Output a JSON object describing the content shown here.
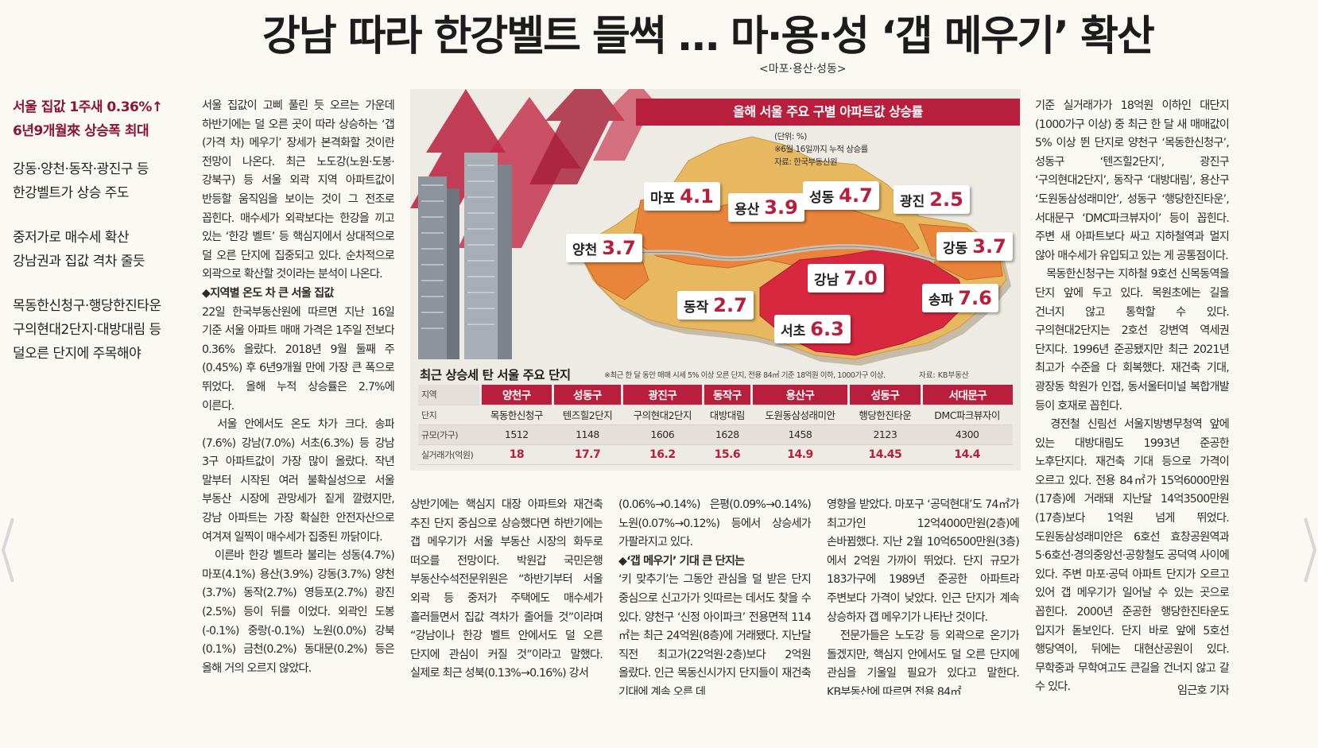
{
  "headline": "강남 따라 한강벨트 들썩 … 마·용·성 ‘갭 메우기’ 확산",
  "subhead": "<마포·용산·성동>",
  "side": {
    "lead1": "서울 집값 1주새 0.36%↑",
    "lead2": "6년9개월來 상승폭 최대",
    "p1a": "강동·양천·동작·광진구 등",
    "p1b": "한강벨트가 상승 주도",
    "p2a": "중저가로 매수세 확산",
    "p2b": "강남권과 집값 격차 줄듯",
    "p3a": "목동한신청구·행당한진타운",
    "p3b": "구의현대2단지·대방대림 등",
    "p3c": "덜오른 단지에 주목해야"
  },
  "col1": {
    "p1": "서울 집값이 고삐 풀린 듯 오르는 가운데 하반기에는 덜 오른 곳이 따라 상승하는 ‘갭(가격 차) 메우기’ 장세가 본격화할 것이란 전망이 나온다. 최근 노도강(노원·도봉·강북구) 등 서울 외곽 지역 아파트값이 반등할 움직임을 보이는 것이 그 전조로 꼽힌다. 매수세가 외곽보다는 한강을 끼고 있는 ‘한강 벨트’ 등 핵심지에서 상대적으로 덜 오른 단지에 집중되고 있다. 순차적으로 외곽으로 확산할 것이라는 분석이 나온다.",
    "sec1": "◆지역별 온도 차 큰 서울 집값",
    "p2": "22일 한국부동산원에 따르면 지난 16일 기준 서울 아파트 매매 가격은 1주일 전보다 0.36% 올랐다. 2018년 9월 둘째 주(0.45%) 후 6년9개월 만에 가장 큰 폭으로 뛰었다. 올해 누적 상승률은 2.7%에 이른다.",
    "p3": "　서울 안에서도 온도 차가 크다. 송파(7.6%) 강남(7.0%) 서초(6.3%) 등 강남 3구 아파트값이 가장 많이 올랐다. 작년 말부터 시작된 여러 불확실성으로 서울 부동산 시장에 관망세가 짙게 깔렸지만, 강남 아파트는 가장 확실한 안전자산으로 여겨져 일찍이 매수세가 집중된 까닭이다.",
    "p4": "　이른바 한강 벨트라 불리는 성동(4.7%) 마포(4.1%) 용산(3.9%) 강동(3.7%) 양천(3.7%) 동작(2.7%) 영등포(2.7%) 광진(2.5%) 등이 뒤를 이었다. 외곽인 도봉(-0.1%) 중랑(-0.1%) 노원(0.0%) 강북(0.1%) 금천(0.2%) 동대문(0.2%) 등은 올해 거의 오르지 않았다."
  },
  "col2": "상반기에는 핵심지 대장 아파트와 재건축 추진 단지 중심으로 상승했다면 하반기에는 갭 메우기가 서울 부동산 시장의 화두로 떠오를 전망이다. 박원갑 국민은행 부동산수석전문위원은 “하반기부터 서울 외곽 등 중저가 주택에도 매수세가 흘러들면서 집값 격차가 줄어들 것”이라며 “강남이나 한강 벨트 안에서도 덜 오른 단지에 관심이 커질 것”이라고 말했다. 실제로 최근 성북(0.13%→0.16%) 강서",
  "col3": {
    "p1": "(0.06%→0.14%) 은평(0.09%→0.14%) 노원(0.07%→0.12%) 등에서 상승세가 가팔라지고 있다.",
    "sec": "◆‘갭 메우기’ 기대 큰 단지는",
    "p2": "‘키 맞추기’는 그동안 관심을 덜 받은 단지 중심으로 신고가가 잇따르는 데서도 찾을 수 있다. 양천구 ‘신정 아이파크’ 전용면적 114㎡는 최근 24억원(8층)에 거래됐다. 지난달 직전 최고가(22억원·2층)보다 2억원 올랐다. 인근 목동신시가지 단지들이 재건축 기대에 계속 오른 데"
  },
  "col4": {
    "p1": "영향을 받았다. 마포구 ‘공덕현대’도 74㎡가 최고가인 12억4000만원(2층)에 손바뀜했다. 지난 2월 10억6500만원(3층)에서 2억원 가까이 뛰었다. 단지 규모가 183가구에 1989년 준공한 아파트라 주변보다 가격이 낮았다. 인근 단지가 계속 상승하자 갭 메우기가 나타난 것이다.",
    "p2": "　전문가들은 노도강 등 외곽으로 온기가 돌겠지만, 핵심지 안에서도 덜 오른 단지에 관심을 기울일 필요가 있다고 말한다. KB부동산에 따르면 전용 84㎡"
  },
  "colR": {
    "p1": "기준 실거래가가 18억원 이하인 대단지(1000가구 이상) 중 최근 한 달 새 매매값이 5% 이상 뛴 단지로 양천구 ‘목동한신청구’, 성동구 ‘텐즈힐2단지’, 광진구 ‘구의현대2단지’, 동작구 ‘대방대림’, 용산구 ‘도원동삼성래미안’, 성동구 ‘행당한진타운’, 서대문구 ‘DMC파크뷰자이’ 등이 꼽힌다. 주변 새 아파트보다 싸고 지하철역과 멀지 않아 매수세가 유입되고 있는 게 공통점이다.",
    "p2": "　목동한신청구는 지하철 9호선 신목동역을 단지 앞에 두고 있다. 목원초에는 길을 건너지 않고 통학할 수 있다. 구의현대2단지는 2호선 강변역 역세권 단지다. 1996년 준공됐지만 최근 2021년 최고가 수준을 다 회복했다. 재건축 기대, 광장동 학원가 인접, 동서울터미널 복합개발 등이 호재로 꼽힌다.",
    "p3": "　경전철 신림선 서울지방병무청역 앞에 있는 대방대림도 1993년 준공한 노후단지다. 재건축 기대 등으로 가격이 오르고 있다. 전용 84㎡가 15억6000만원(17층)에 거래돼 지난달 14억3500만원(17층)보다 1억원 넘게 뛰었다. 도원동삼성래미안은 6호선 효창공원역과 5·6호선·경의중앙선·공항철도 공덕역 사이에 있다. 주변 마포·공덕 아파트 단지가 오르고 있어 갭 메우기가 일어날 수 있는 곳으로 꼽힌다. 2000년 준공한 행당한진타운도 입지가 돋보인다. 단지 바로 앞에 5호선 행당역이, 뒤에는 대현산공원이 있다. 무학중과 무학여고도 큰길을 건너지 않고 갈 수 있다.",
    "byline": "임근호 기자"
  },
  "map": {
    "title": "올해 서울 주요 구별 아파트값 상승률",
    "unit": "(단위: %)",
    "note": "※6월 16일까지 누적 상승률",
    "source": "자료: 한국부동산원",
    "districts": [
      {
        "name": "마포",
        "value": "4.1"
      },
      {
        "name": "용산",
        "value": "3.9"
      },
      {
        "name": "성동",
        "value": "4.7"
      },
      {
        "name": "광진",
        "value": "2.5"
      },
      {
        "name": "양천",
        "value": "3.7"
      },
      {
        "name": "강동",
        "value": "3.7"
      },
      {
        "name": "강남",
        "value": "7.0"
      },
      {
        "name": "송파",
        "value": "7.6"
      },
      {
        "name": "동작",
        "value": "2.7"
      },
      {
        "name": "서초",
        "value": "6.3"
      }
    ],
    "colors": {
      "high": "#d7283f",
      "mid": "#e9843a",
      "low": "#e8b860",
      "accent": "#b71f3c"
    }
  },
  "table": {
    "title": "최근 상승세 탄 서울 주요 단지",
    "note": "※최근 한 달 동안 매매 시세 5% 이상 오른 단지, 전용 84㎡ 기준 18억원 이하, 1000가구 이상.",
    "source": "자료: KB부동산",
    "row_labels": [
      "지역",
      "단지",
      "규모(가구)",
      "실거래가(억원)"
    ],
    "regions": [
      "양천구",
      "성동구",
      "광진구",
      "동작구",
      "용산구",
      "성동구",
      "서대문구"
    ],
    "complexes": [
      "목동한신청구",
      "텐즈힐2단지",
      "구의현대2단지",
      "대방대림",
      "도원동삼성래미안",
      "행당한진타운",
      "DMC파크뷰자이"
    ],
    "sizes": [
      "1512",
      "1148",
      "1606",
      "1628",
      "1458",
      "2123",
      "4300"
    ],
    "prices": [
      "18",
      "17.7",
      "16.2",
      "15.6",
      "14.9",
      "14.45",
      "14.4"
    ]
  }
}
